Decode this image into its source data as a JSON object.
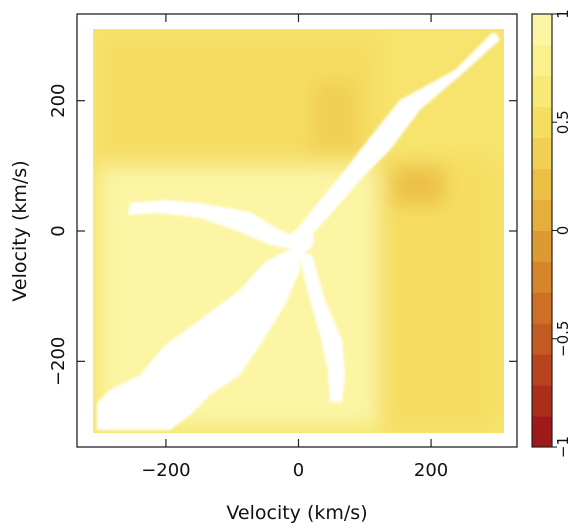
{
  "chart_data": {
    "type": "heatmap",
    "xlabel": "Velocity (km/s)",
    "ylabel": "Velocity (km/s)",
    "xlim": [
      -320,
      320
    ],
    "ylim": [
      -320,
      320
    ],
    "x_ticks": [
      -200,
      0,
      200
    ],
    "x_tick_labels": [
      "−200",
      "0",
      "200"
    ],
    "y_ticks": [
      -200,
      0,
      200
    ],
    "y_tick_labels": [
      "−200",
      "0",
      "200"
    ],
    "colorbar": {
      "range": [
        -1,
        1
      ],
      "ticks": [
        -1,
        -0.5,
        0,
        0.5,
        1
      ],
      "tick_labels": [
        "−1",
        "−0.5",
        "0",
        "0.5",
        "1"
      ],
      "colors": [
        "#9e1a1a",
        "#ab2e1a",
        "#b8431e",
        "#c35a22",
        "#cd7026",
        "#d6852b",
        "#de9a32",
        "#e6ae3a",
        "#ecc045",
        "#f1cf53",
        "#f5dd62",
        "#f8e876",
        "#faf08c",
        "#fbf5a4"
      ]
    },
    "correlation_blocks": [
      {
        "x": [
          -300,
          120
        ],
        "y": [
          100,
          300
        ],
        "value": 0.5,
        "note": "correlated emission, upper-left"
      },
      {
        "x": [
          20,
          90
        ],
        "y": [
          120,
          230
        ],
        "value": 0.35
      },
      {
        "x": [
          -260,
          -150
        ],
        "y": [
          150,
          210
        ],
        "value": 0.45
      },
      {
        "x": [
          120,
          300
        ],
        "y": [
          -300,
          110
        ],
        "value": 0.45,
        "note": "anti-correlated band, lower-right"
      },
      {
        "x": [
          140,
          220
        ],
        "y": [
          40,
          100
        ],
        "value": 0.2
      },
      {
        "x": [
          -300,
          120
        ],
        "y": [
          -300,
          100
        ],
        "value": 0.9
      }
    ],
    "masked_region": "diagonal and branches (auto-correlation)"
  }
}
